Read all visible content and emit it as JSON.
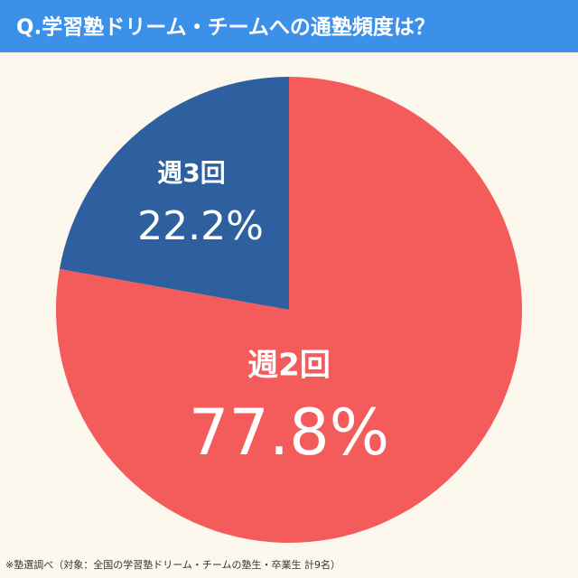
{
  "chart_data": {
    "type": "pie",
    "title": "Q.学習塾ドリーム・チームへの通塾頻度は？",
    "categories": [
      "週2回",
      "週3回"
    ],
    "values": [
      77.8,
      22.2
    ],
    "value_labels": [
      "77.8%",
      "22.2%"
    ],
    "colors": [
      "#f45b5b",
      "#2e60a0"
    ],
    "note": "※塾選調べ（対象：全国の学習塾ドリーム・チームの塾生・卒業生 計9名）"
  }
}
